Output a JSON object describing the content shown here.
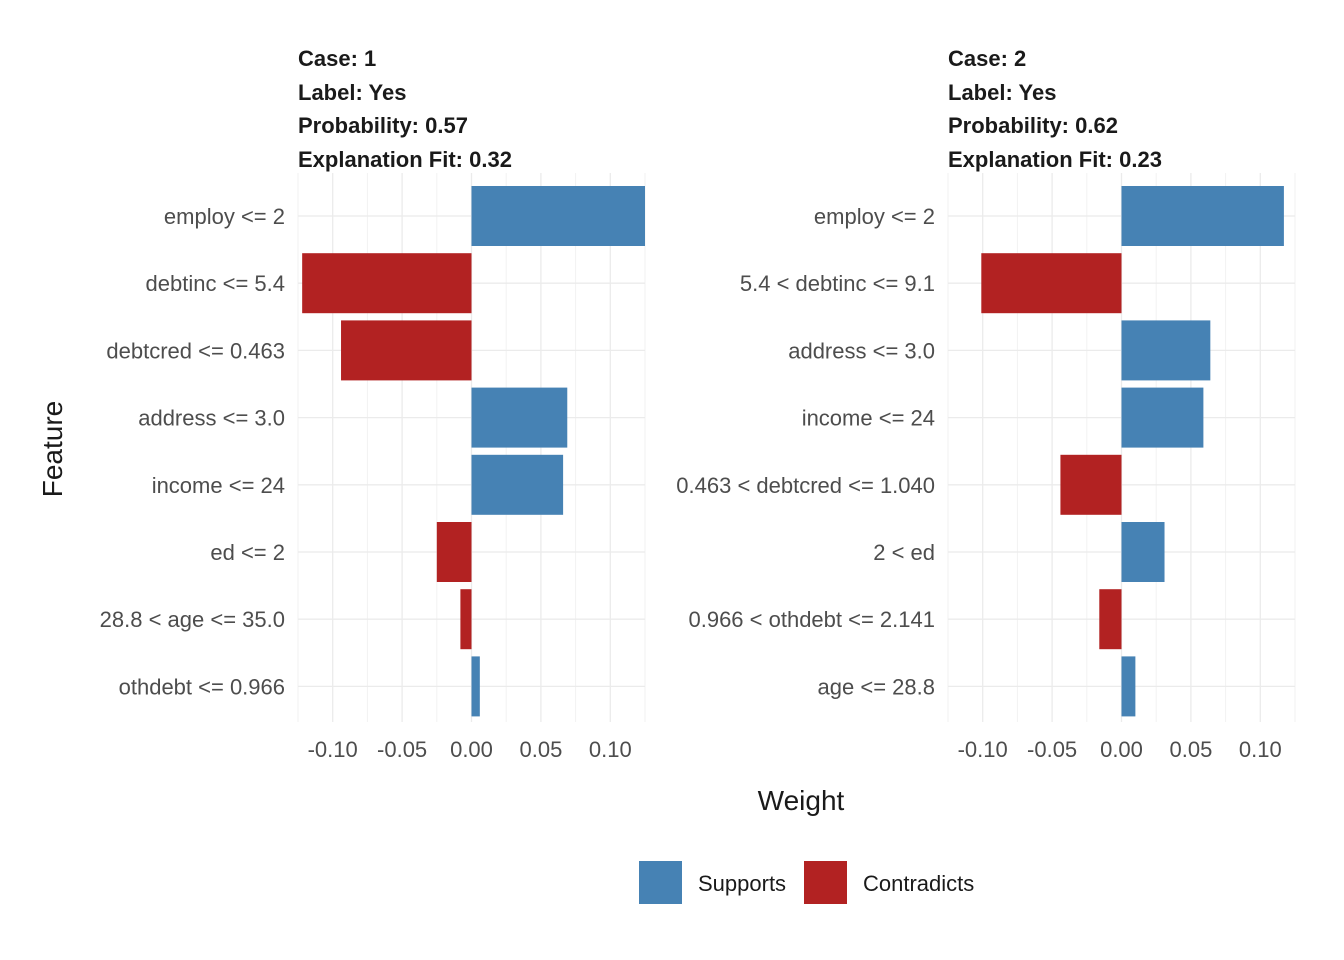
{
  "chart_data": {
    "type": "bar",
    "orientation": "horizontal",
    "xlabel": "Weight",
    "ylabel": "Feature",
    "xlim": [
      -0.125,
      0.125
    ],
    "xticks": [
      -0.1,
      -0.05,
      0.0,
      0.05,
      0.1
    ],
    "xtick_labels": [
      "-0.10",
      "-0.05",
      "0.00",
      "0.05",
      "0.10"
    ],
    "grid": true,
    "legend": {
      "placement": "bottom",
      "entries": [
        {
          "label": "Supports",
          "color": "#4682B4"
        },
        {
          "label": "Contradicts",
          "color": "#B22222"
        }
      ]
    },
    "panels": [
      {
        "header": [
          "Case: 1",
          "Label: Yes",
          "Probability: 0.57",
          "Explanation Fit: 0.32"
        ],
        "features": [
          "employ <= 2",
          "debtinc <= 5.4",
          "debtcred <= 0.463",
          "address <= 3.0",
          "income <= 24",
          "ed <= 2",
          "28.8 < age <= 35.0",
          "othdebt <= 0.966"
        ],
        "weights": [
          0.125,
          -0.122,
          -0.094,
          0.069,
          0.066,
          -0.025,
          -0.008,
          0.006
        ]
      },
      {
        "header": [
          "Case: 2",
          "Label: Yes",
          "Probability: 0.62",
          "Explanation Fit: 0.23"
        ],
        "features": [
          "employ <= 2",
          "5.4 < debtinc <= 9.1",
          "address <= 3.0",
          "income <= 24",
          "0.463 < debtcred <= 1.040",
          "2 < ed",
          "0.966 < othdebt <= 2.141",
          "age <= 28.8"
        ],
        "weights": [
          0.117,
          -0.101,
          0.064,
          0.059,
          -0.044,
          0.031,
          -0.016,
          0.01
        ]
      }
    ]
  }
}
